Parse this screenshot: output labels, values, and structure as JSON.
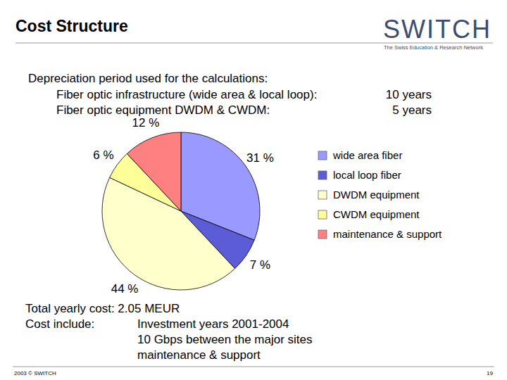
{
  "chart_data": {
    "type": "pie",
    "categories": [
      "wide area fiber",
      "local loop fiber",
      "DWDM equipment",
      "CWDM equipment",
      "maintenance & support"
    ],
    "values": [
      31,
      7,
      44,
      6,
      12
    ],
    "value_labels": [
      "31 %",
      "7 %",
      "44 %",
      "6 %",
      "12 %"
    ],
    "colors": [
      "#9999ff",
      "#5c5cd6",
      "#ffffcc",
      "#ffff99",
      "#ff8080"
    ],
    "data_labels": true,
    "legend": "right"
  },
  "slide": {
    "title": "Cost Structure",
    "logo": {
      "name": "SWITCH",
      "tagline": "The Swiss Education & Research Network"
    },
    "depreciation": {
      "heading": "Depreciation period used for the calculations:",
      "rows": [
        {
          "label": "Fiber optic infrastructure (wide area & local loop):",
          "value": "10 years"
        },
        {
          "label": "Fiber optic equipment DWDM & CWDM:",
          "value": "5 years"
        }
      ]
    },
    "summary": {
      "total": "Total yearly cost: 2.05 MEUR",
      "includes_label": "Cost include:",
      "includes": [
        "Investment years 2001-2004",
        "10 Gbps between the major sites",
        "maintenance & support"
      ]
    },
    "footer": {
      "copyright": "2003 © SWITCH",
      "page": "19"
    }
  }
}
